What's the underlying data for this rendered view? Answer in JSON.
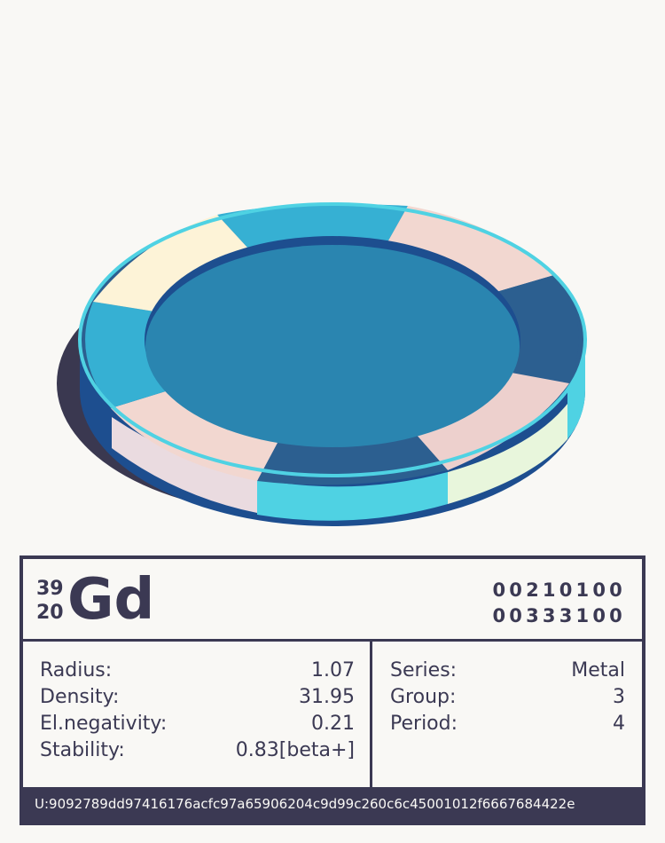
{
  "element": {
    "mass_number": "39",
    "atomic_number": "20",
    "symbol": "Gd",
    "code_line1": "00210100",
    "code_line2": "00333100"
  },
  "properties_left": [
    {
      "label": "Radius:",
      "value": "1.07"
    },
    {
      "label": "Density:",
      "value": "31.95"
    },
    {
      "label": "El.negativity:",
      "value": "0.21"
    },
    {
      "label": "Stability:",
      "value": "0.83[beta+]"
    }
  ],
  "properties_right": [
    {
      "label": "Series:",
      "value": "Metal"
    },
    {
      "label": "Group:",
      "value": "3"
    },
    {
      "label": "Period:",
      "value": "4"
    }
  ],
  "footer_id": "U:9092789dd97416176acfc97a65906204c9d99c260c6c45001012f6667684422e",
  "colors": {
    "background": "#f9f8f5",
    "ink": "#3b3953",
    "disc_top": "#2a85b0",
    "disc_side": "#1d4e8f",
    "shadow": "#3a3850",
    "seg_cyan": "#36b0d3",
    "seg_pink": "#f0d2cf",
    "seg_cream": "#fdf3d7",
    "seg_navy": "#2c5f90",
    "rim_cyan": "#4fd2e3"
  }
}
